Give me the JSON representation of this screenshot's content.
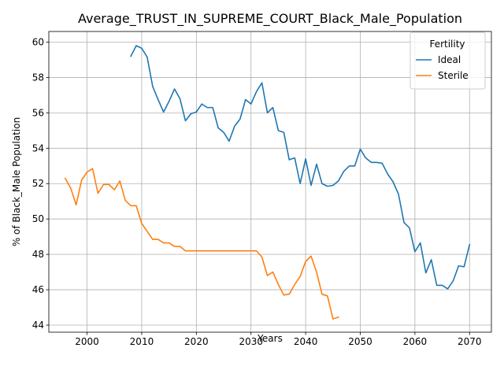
{
  "chart_data": {
    "type": "line",
    "title": "Average_TRUST_IN_SUPREME_COURT_Black_Male_Population",
    "xlabel": "Years",
    "ylabel": "% of Black_Male Population",
    "xlim": [
      1993,
      2074
    ],
    "ylim": [
      43.6,
      60.6
    ],
    "xticks": [
      2000,
      2010,
      2020,
      2030,
      2040,
      2050,
      2060,
      2070
    ],
    "yticks": [
      44,
      46,
      48,
      50,
      52,
      54,
      56,
      58,
      60
    ],
    "grid": true,
    "legend": {
      "title": "Fertility",
      "position": "top-right"
    },
    "series": [
      {
        "name": "Ideal",
        "color": "#1f77b4",
        "x": [
          2008,
          2009,
          2010,
          2011,
          2012,
          2013,
          2014,
          2015,
          2016,
          2017,
          2018,
          2019,
          2020,
          2021,
          2022,
          2023,
          2024,
          2025,
          2026,
          2027,
          2028,
          2029,
          2030,
          2031,
          2032,
          2033,
          2034,
          2035,
          2036,
          2037,
          2038,
          2039,
          2040,
          2041,
          2042,
          2043,
          2044,
          2045,
          2046,
          2047,
          2048,
          2049,
          2050,
          2051,
          2052,
          2053,
          2054,
          2055,
          2056,
          2057,
          2058,
          2059,
          2060,
          2061,
          2062,
          2063,
          2064,
          2065,
          2066,
          2067,
          2068,
          2069,
          2070
        ],
        "values": [
          59.2,
          59.8,
          59.65,
          59.15,
          57.5,
          56.75,
          56.05,
          56.65,
          57.35,
          56.8,
          55.55,
          55.95,
          56.05,
          56.5,
          56.3,
          56.3,
          55.15,
          54.9,
          54.4,
          55.25,
          55.65,
          56.75,
          56.5,
          57.2,
          57.7,
          56.0,
          56.3,
          55.0,
          54.9,
          53.35,
          53.45,
          52.0,
          53.4,
          51.9,
          53.1,
          52.0,
          51.85,
          51.9,
          52.15,
          52.7,
          53.0,
          53.0,
          53.95,
          53.45,
          53.2,
          53.2,
          53.15,
          52.55,
          52.1,
          51.4,
          49.8,
          49.5,
          48.15,
          48.65,
          46.95,
          47.7,
          46.25,
          46.25,
          46.05,
          46.5,
          47.35,
          47.3,
          48.55
        ]
      },
      {
        "name": "Sterile",
        "color": "#ff7f0e",
        "x": [
          1996,
          1997,
          1998,
          1999,
          2000,
          2001,
          2002,
          2003,
          2004,
          2005,
          2006,
          2007,
          2008,
          2009,
          2010,
          2011,
          2012,
          2013,
          2014,
          2015,
          2016,
          2017,
          2018,
          2019,
          2020,
          2021,
          2022,
          2023,
          2024,
          2025,
          2026,
          2027,
          2028,
          2029,
          2030,
          2031,
          2032,
          2033,
          2034,
          2035,
          2036,
          2037,
          2038,
          2039,
          2040,
          2041,
          2042,
          2043,
          2044,
          2045,
          2046
        ],
        "values": [
          52.3,
          51.75,
          50.8,
          52.2,
          52.65,
          52.85,
          51.45,
          51.95,
          51.95,
          51.65,
          52.15,
          51.05,
          50.75,
          50.75,
          49.75,
          49.3,
          48.85,
          48.85,
          48.65,
          48.65,
          48.45,
          48.45,
          48.2,
          48.2,
          48.2,
          48.2,
          48.2,
          48.2,
          48.2,
          48.2,
          48.2,
          48.2,
          48.2,
          48.2,
          48.2,
          48.2,
          47.85,
          46.8,
          47.0,
          46.3,
          45.7,
          45.75,
          46.3,
          46.75,
          47.6,
          47.9,
          47.0,
          45.75,
          45.65,
          44.35,
          44.45
        ]
      }
    ]
  }
}
